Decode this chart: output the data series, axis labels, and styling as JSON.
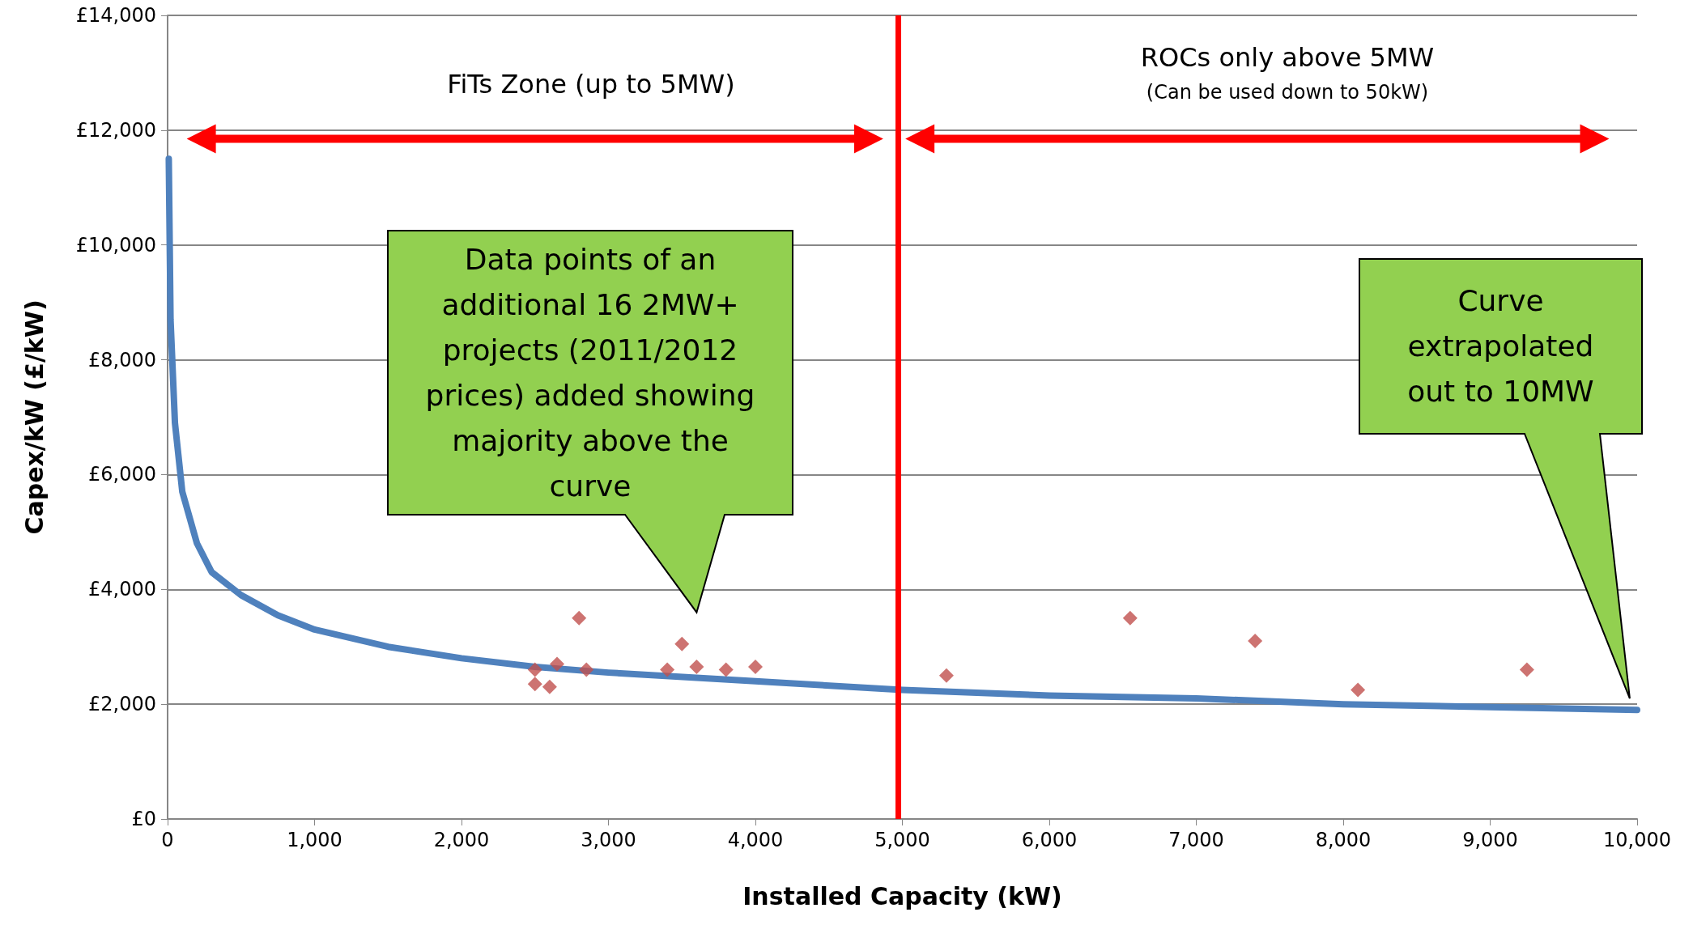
{
  "chart_data": {
    "type": "scatter",
    "xlabel": "Installed Capacity (kW)",
    "ylabel": "Capex/kW (£/kW)",
    "xlim": [
      0,
      10000
    ],
    "xticks": [
      0,
      {
        "value": 1000,
        "label": "1,000"
      },
      {
        "value": 2000,
        "label": "2,000"
      },
      {
        "value": 3000,
        "label": "3,000"
      },
      {
        "value": 4000,
        "label": "4,000"
      },
      {
        "value": 5000,
        "label": "5,000"
      },
      {
        "value": 6000,
        "label": "6,000"
      },
      {
        "value": 7000,
        "label": "7,000"
      },
      {
        "value": 8000,
        "label": "8,000"
      },
      {
        "value": 9000,
        "label": "9,000"
      },
      {
        "value": 10000,
        "label": "10,000"
      }
    ],
    "ylim": [
      0,
      14000
    ],
    "yticks": [
      {
        "value": 0,
        "label": "£0"
      },
      {
        "value": 2000,
        "label": "£2,000"
      },
      {
        "value": 4000,
        "label": "£4,000"
      },
      {
        "value": 6000,
        "label": "£6,000"
      },
      {
        "value": 8000,
        "label": "£8,000"
      },
      {
        "value": 10000,
        "label": "£10,000"
      },
      {
        "value": 12000,
        "label": "£12,000"
      },
      {
        "value": 14000,
        "label": "£14,000"
      }
    ],
    "grid": "y",
    "series": [
      {
        "type": "line",
        "color": "#4f81bd",
        "marker": "none",
        "x": [
          8,
          20,
          50,
          100,
          200,
          300,
          500,
          750,
          1000,
          1500,
          2000,
          2500,
          3000,
          4000,
          5000,
          6000,
          7000,
          8000,
          9000,
          10000
        ],
        "values": [
          11500,
          8700,
          6900,
          5700,
          4800,
          4300,
          3900,
          3550,
          3300,
          3000,
          2800,
          2650,
          2550,
          2400,
          2250,
          2150,
          2100,
          2000,
          1950,
          1900
        ]
      },
      {
        "color": "#c0504d",
        "marker": "diamond",
        "x": [
          2500,
          2500,
          2600,
          2650,
          2800,
          2850,
          3400,
          3500,
          3600,
          3800,
          4000,
          5300,
          6550,
          7400,
          8100,
          9250
        ],
        "values": [
          2600,
          2350,
          2300,
          2700,
          3500,
          2600,
          2600,
          3050,
          2650,
          2600,
          2650,
          2500,
          3500,
          3100,
          2250,
          2600
        ]
      }
    ],
    "ref_lines": [
      {
        "axis": "x",
        "value": 4970,
        "color": "#ff0000"
      }
    ],
    "annotations": [
      "FiTs Zone (up to 5MW)",
      "ROCs only above 5MW",
      "(Can be used down to 50kW)",
      "Data points of an additional 16 2MW+ projects (2011/2012 prices) added showing majority above the curve",
      "Curve extrapolated out to 10MW"
    ]
  }
}
